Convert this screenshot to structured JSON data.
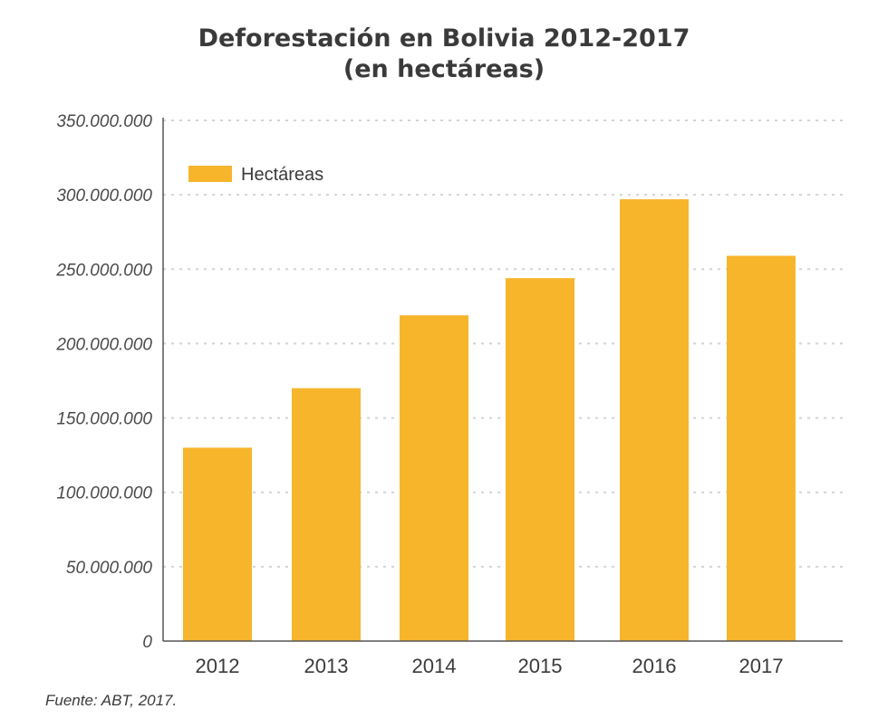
{
  "chart_data": {
    "type": "bar",
    "title": "Deforestación en Bolivia 2012-2017",
    "subtitle": "(en hectáreas)",
    "categories": [
      "2012",
      "2013",
      "2014",
      "2015",
      "2016",
      "2017"
    ],
    "series": [
      {
        "name": "Hectáreas",
        "values": [
          130000000,
          170000000,
          219000000,
          244000000,
          297000000,
          259000000
        ],
        "color": "#f7b52c"
      }
    ],
    "ylim": [
      0,
      350000000
    ],
    "yticks": [
      0,
      50000000,
      100000000,
      150000000,
      200000000,
      250000000,
      300000000,
      350000000
    ],
    "ytick_labels": [
      "0",
      "50.000.000",
      "100.000.000",
      "150.000.000",
      "200.000.000",
      "250.000.000",
      "300.000.000",
      "350.000.000"
    ],
    "xlabel": "",
    "ylabel": "",
    "grid": true,
    "legend_position": "top-left"
  },
  "source": "Fuente: ABT, 2017."
}
